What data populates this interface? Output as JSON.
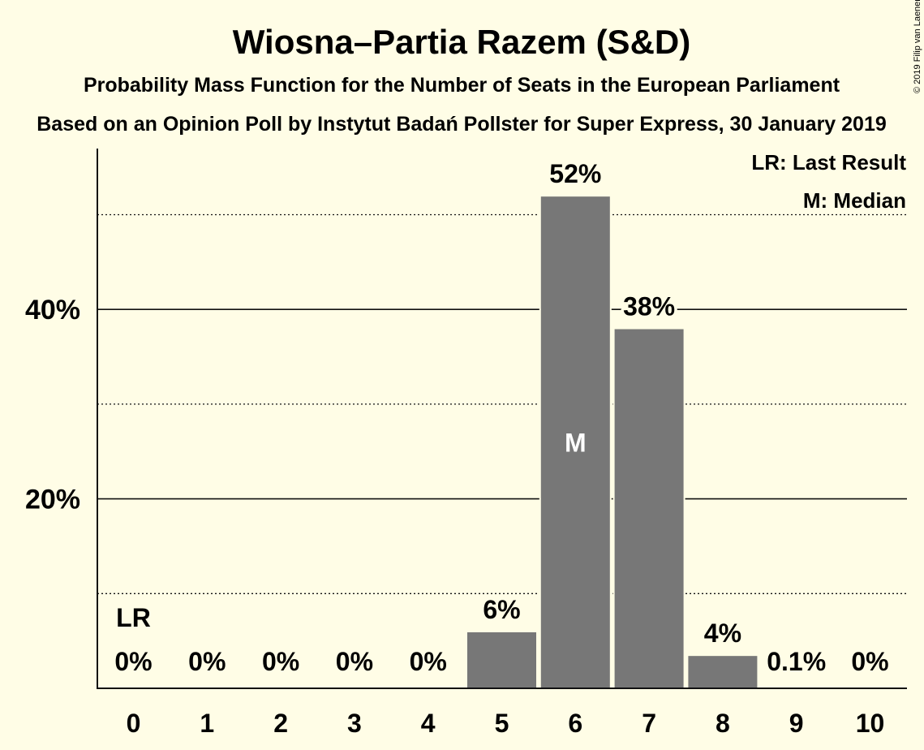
{
  "chart_data": {
    "type": "bar",
    "title": "Wiosna–Partia Razem (S&D)",
    "subtitle": "Probability Mass Function for the Number of Seats in the European Parliament",
    "subtitle2": "Based on an Opinion Poll by Instytut Badań Pollster for Super Express, 30 January 2019",
    "xlabel": "",
    "ylabel": "",
    "categories": [
      "0",
      "1",
      "2",
      "3",
      "4",
      "5",
      "6",
      "7",
      "8",
      "9",
      "10"
    ],
    "values": [
      0,
      0,
      0,
      0,
      0,
      6,
      52,
      38,
      3.5,
      0.1,
      0
    ],
    "value_labels": [
      "0%",
      "0%",
      "0%",
      "0%",
      "0%",
      "6%",
      "52%",
      "38%",
      "4%",
      "0.1%",
      "0%"
    ],
    "ylim": [
      0,
      57
    ],
    "y_ticks": [
      {
        "value": 20,
        "label": "20%"
      },
      {
        "value": 40,
        "label": "40%"
      }
    ],
    "minor_gridlines": [
      10,
      30,
      50
    ],
    "last_result": {
      "category": "0",
      "marker": "LR"
    },
    "median": {
      "category": "6",
      "marker": "M"
    },
    "legend_position": "top-right",
    "legend": [
      "LR: Last Result",
      "M: Median"
    ],
    "bar_color": "#777777",
    "background_color": "#fffde6",
    "copyright": "© 2019 Filip van Laenen"
  }
}
